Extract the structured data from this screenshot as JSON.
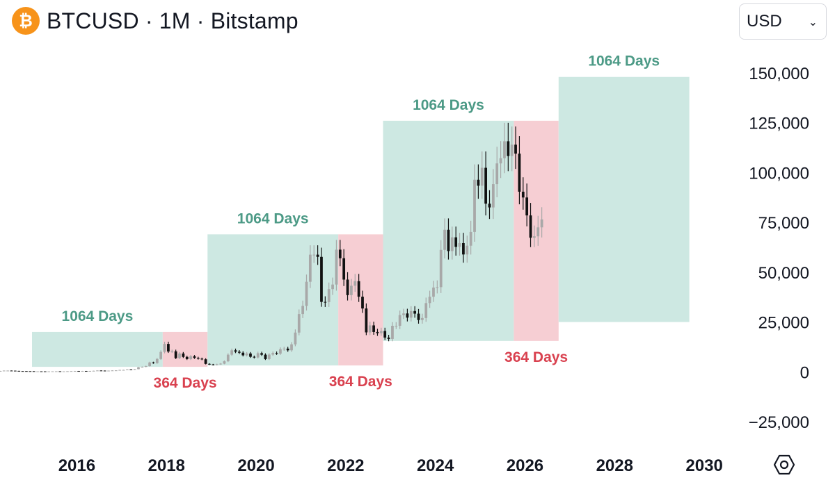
{
  "header": {
    "symbol_title": "BTCUSD · 1M · Bitstamp",
    "coin_icon": "bitcoin-icon",
    "coin_color": "#f7931a"
  },
  "currency_select": {
    "selected": "USD",
    "icon": "chevron-down-icon"
  },
  "settings": {
    "icon": "settings-hexagon-icon"
  },
  "colors": {
    "bull_box": "#cde8e2",
    "bear_box": "#f6ced3",
    "bull_text": "#4c9a86",
    "bear_text": "#d9414f",
    "up_candle": "#a8a8a8",
    "down_candle": "#111111"
  },
  "chart_data": {
    "type": "candlestick",
    "title": "BTCUSD · 1M · Bitstamp",
    "x_axis": {
      "type": "date",
      "tick_labels": [
        "2016",
        "2018",
        "2020",
        "2022",
        "2024",
        "2026",
        "2028",
        "2030"
      ]
    },
    "y_axis": {
      "ylim": [
        -25000,
        150000
      ],
      "position": "right",
      "tick_labels": [
        "150,000",
        "125,000",
        "100,000",
        "75,000",
        "50,000",
        "25,000",
        "0",
        "−25,000"
      ],
      "ticks": [
        150000,
        125000,
        100000,
        75000,
        50000,
        25000,
        0,
        -25000
      ]
    },
    "grid": false,
    "legend": "none",
    "cycle_boxes": [
      {
        "kind": "bull",
        "label": "1064 Days",
        "start": "2015-01",
        "end": "2017-12",
        "low": 2500,
        "high": 20000
      },
      {
        "kind": "bear",
        "label": "364 Days",
        "start": "2017-12",
        "end": "2018-12",
        "low": 2500,
        "high": 20000
      },
      {
        "kind": "bull",
        "label": "1064 Days",
        "start": "2018-12",
        "end": "2021-11",
        "low": 3200,
        "high": 69000
      },
      {
        "kind": "bear",
        "label": "364 Days",
        "start": "2021-11",
        "end": "2022-11",
        "low": 3200,
        "high": 69000
      },
      {
        "kind": "bull",
        "label": "1064 Days",
        "start": "2022-11",
        "end": "2025-10",
        "low": 15500,
        "high": 126000
      },
      {
        "kind": "bear",
        "label": "364 Days",
        "start": "2025-10",
        "end": "2026-10",
        "low": 15500,
        "high": 126000
      },
      {
        "kind": "bull",
        "label": "1064 Days",
        "start": "2026-10",
        "end": "2029-09",
        "low": 25000,
        "high": 148000
      }
    ],
    "close_series": {
      "start": "2014-04",
      "values": [
        450,
        630,
        630,
        580,
        480,
        390,
        380,
        340,
        320,
        220,
        250,
        240,
        230,
        240,
        260,
        280,
        230,
        240,
        310,
        380,
        430,
        370,
        440,
        420,
        450,
        530,
        670,
        620,
        570,
        610,
        700,
        740,
        960,
        970,
        1190,
        1070,
        1350,
        2300,
        2500,
        2870,
        4700,
        4350,
        6450,
        10000,
        14000,
        10200,
        10300,
        6900,
        9200,
        7500,
        6400,
        7800,
        7000,
        6600,
        6300,
        4000,
        3700,
        3450,
        3800,
        4100,
        5300,
        8600,
        10800,
        10100,
        9600,
        8300,
        9200,
        7550,
        7200,
        9350,
        8600,
        6400,
        8650,
        9450,
        9150,
        11350,
        11650,
        10800,
        13800,
        19700,
        29000,
        33100,
        45200,
        58800,
        58800,
        57700,
        35100,
        35000,
        41500,
        43800,
        61300,
        57000,
        46300,
        38500,
        43200,
        45500,
        37700,
        31800,
        19800,
        23300,
        20000,
        19400,
        20500,
        17200,
        16500,
        23100,
        23100,
        28500,
        29300,
        27200,
        30500,
        29200,
        26000,
        27000,
        34500,
        37700,
        42300,
        42500,
        61200,
        71300,
        60600,
        67500,
        62700,
        64600,
        58900,
        63300,
        70200,
        96400,
        93400,
        102400,
        84400,
        82500,
        94200,
        104600,
        107200,
        115700,
        108300,
        114000,
        109500,
        90400,
        87500,
        78500,
        67300,
        68000,
        72500,
        76500
      ]
    }
  }
}
